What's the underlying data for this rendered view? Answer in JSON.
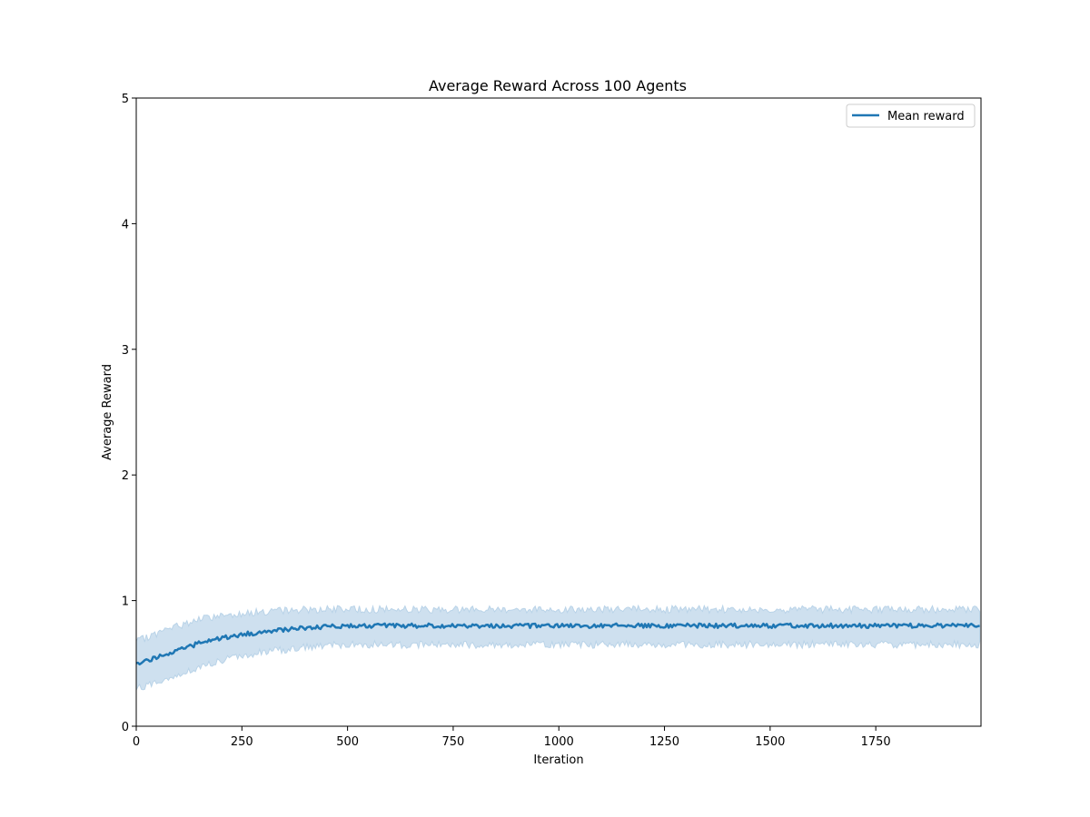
{
  "chart_data": {
    "type": "line",
    "title": "Average Reward Across 100 Agents",
    "xlabel": "Iteration",
    "ylabel": "Average Reward",
    "xlim": [
      0,
      1999
    ],
    "ylim": [
      0,
      5
    ],
    "x_ticks": [
      0,
      250,
      500,
      750,
      1000,
      1250,
      1500,
      1750
    ],
    "x_tick_labels": [
      "0",
      "250",
      "500",
      "750",
      "1000",
      "1250",
      "1500",
      "1750"
    ],
    "y_ticks": [
      0,
      1,
      2,
      3,
      4,
      5
    ],
    "y_tick_labels": [
      "0",
      "1",
      "2",
      "3",
      "4",
      "5"
    ],
    "grid": false,
    "legend_position": "top-right",
    "series": [
      {
        "name": "Mean reward",
        "color": "#1f77b4",
        "x": [
          0,
          50,
          100,
          150,
          200,
          250,
          300,
          350,
          400,
          450,
          500,
          600,
          700,
          800,
          900,
          1000,
          1100,
          1200,
          1300,
          1400,
          1500,
          1600,
          1700,
          1800,
          1900,
          1999
        ],
        "values": [
          0.5,
          0.55,
          0.61,
          0.66,
          0.7,
          0.73,
          0.75,
          0.77,
          0.78,
          0.79,
          0.8,
          0.8,
          0.8,
          0.8,
          0.8,
          0.8,
          0.8,
          0.8,
          0.8,
          0.8,
          0.8,
          0.8,
          0.8,
          0.8,
          0.8,
          0.8
        ],
        "band_lower": [
          0.3,
          0.35,
          0.41,
          0.47,
          0.52,
          0.56,
          0.59,
          0.61,
          0.63,
          0.64,
          0.65,
          0.65,
          0.65,
          0.65,
          0.65,
          0.65,
          0.65,
          0.65,
          0.65,
          0.65,
          0.65,
          0.65,
          0.65,
          0.65,
          0.65,
          0.65
        ],
        "band_upper": [
          0.67,
          0.74,
          0.8,
          0.85,
          0.88,
          0.9,
          0.91,
          0.92,
          0.93,
          0.93,
          0.93,
          0.93,
          0.93,
          0.93,
          0.93,
          0.93,
          0.93,
          0.93,
          0.93,
          0.93,
          0.93,
          0.93,
          0.93,
          0.93,
          0.93,
          0.93
        ],
        "band_color": "#b9d3e8"
      }
    ]
  }
}
